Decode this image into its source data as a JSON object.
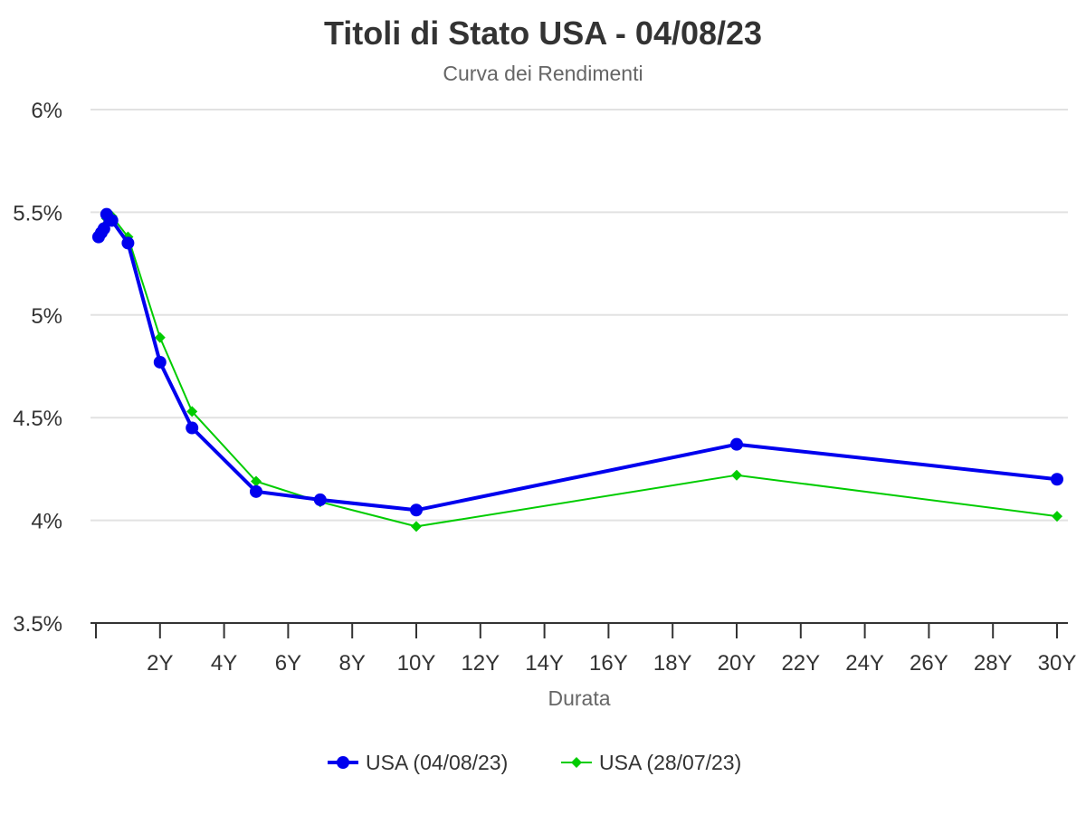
{
  "chart_data": {
    "type": "line",
    "title": "Titoli di Stato USA - 04/08/23",
    "subtitle": "Curva dei Rendimenti",
    "xlabel": "Durata",
    "ylabel": "",
    "xlim": [
      0,
      30.3
    ],
    "ylim": [
      3.5,
      6
    ],
    "x_ticks": [
      {
        "value": 0,
        "label": ""
      },
      {
        "value": 2,
        "label": "2Y"
      },
      {
        "value": 4,
        "label": "4Y"
      },
      {
        "value": 6,
        "label": "6Y"
      },
      {
        "value": 8,
        "label": "8Y"
      },
      {
        "value": 10,
        "label": "10Y"
      },
      {
        "value": 12,
        "label": "12Y"
      },
      {
        "value": 14,
        "label": "14Y"
      },
      {
        "value": 16,
        "label": "16Y"
      },
      {
        "value": 18,
        "label": "18Y"
      },
      {
        "value": 20,
        "label": "20Y"
      },
      {
        "value": 22,
        "label": "22Y"
      },
      {
        "value": 24,
        "label": "24Y"
      },
      {
        "value": 26,
        "label": "26Y"
      },
      {
        "value": 28,
        "label": "28Y"
      },
      {
        "value": 30,
        "label": "30Y"
      }
    ],
    "y_ticks": [
      {
        "value": 3.5,
        "label": "3.5%"
      },
      {
        "value": 4,
        "label": "4%"
      },
      {
        "value": 4.5,
        "label": "4.5%"
      },
      {
        "value": 5,
        "label": "5%"
      },
      {
        "value": 5.5,
        "label": "5.5%"
      },
      {
        "value": 6,
        "label": "6%"
      }
    ],
    "grid": true,
    "legend_position": "bottom-center",
    "series": [
      {
        "name": "USA (04/08/23)",
        "color": "#0000ee",
        "marker": "circle",
        "points": [
          {
            "x": 0.083,
            "y": 5.38
          },
          {
            "x": 0.167,
            "y": 5.4
          },
          {
            "x": 0.25,
            "y": 5.42
          },
          {
            "x": 0.333,
            "y": 5.49
          },
          {
            "x": 0.5,
            "y": 5.46
          },
          {
            "x": 1,
            "y": 5.35
          },
          {
            "x": 2,
            "y": 4.77
          },
          {
            "x": 3,
            "y": 4.45
          },
          {
            "x": 5,
            "y": 4.14
          },
          {
            "x": 7,
            "y": 4.1
          },
          {
            "x": 10,
            "y": 4.05
          },
          {
            "x": 20,
            "y": 4.37
          },
          {
            "x": 30,
            "y": 4.2
          }
        ]
      },
      {
        "name": "USA (28/07/23)",
        "color": "#00cc00",
        "marker": "diamond",
        "points": [
          {
            "x": 0.083,
            "y": 5.38
          },
          {
            "x": 0.167,
            "y": 5.41
          },
          {
            "x": 0.25,
            "y": 5.43
          },
          {
            "x": 0.333,
            "y": 5.47
          },
          {
            "x": 0.5,
            "y": 5.48
          },
          {
            "x": 1,
            "y": 5.38
          },
          {
            "x": 2,
            "y": 4.89
          },
          {
            "x": 3,
            "y": 4.53
          },
          {
            "x": 5,
            "y": 4.19
          },
          {
            "x": 7,
            "y": 4.09
          },
          {
            "x": 10,
            "y": 3.97
          },
          {
            "x": 20,
            "y": 4.22
          },
          {
            "x": 30,
            "y": 4.02
          }
        ]
      }
    ]
  }
}
